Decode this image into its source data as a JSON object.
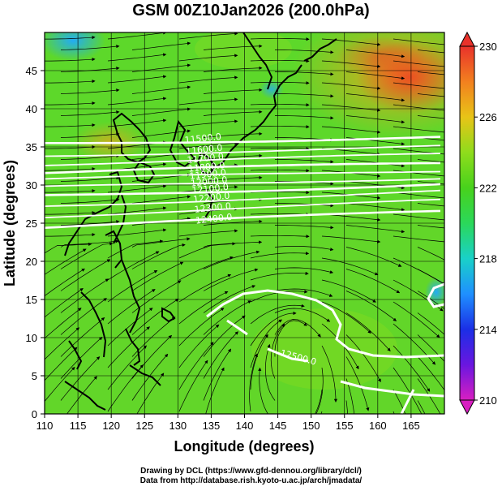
{
  "chart_data": {
    "type": "heatmap",
    "title": "GSM 00Z10Jan2026 (200.0hPa)",
    "xlabel": "Longitude (degrees)",
    "ylabel": "Latitude  (degrees)",
    "xlim": [
      110,
      170
    ],
    "ylim": [
      0,
      50
    ],
    "x_ticks": [
      110,
      115,
      120,
      125,
      130,
      135,
      140,
      145,
      150,
      155,
      160,
      165
    ],
    "y_ticks": [
      0,
      5,
      10,
      15,
      20,
      25,
      30,
      35,
      40,
      45
    ],
    "colorbar": {
      "min": 210,
      "max": 230,
      "ticks": [
        210,
        214,
        218,
        222,
        226,
        230
      ]
    },
    "grid": true,
    "overlays": [
      "streamlines",
      "geopotential height contours",
      "coastlines"
    ],
    "contours": [
      {
        "label": "11500.0",
        "lat": 35.5
      },
      {
        "label": "11600.0",
        "lat": 34.0
      },
      {
        "label": "11700.0",
        "lat": 32.8
      },
      {
        "label": "11800.0",
        "lat": 31.6
      },
      {
        "label": "11900.0",
        "lat": 30.6
      },
      {
        "label": "12000.0",
        "lat": 29.6
      },
      {
        "label": "12100.0",
        "lat": 28.6
      },
      {
        "label": "12200.0",
        "lat": 27.4
      },
      {
        "label": "12300.0",
        "lat": 26.0
      },
      {
        "label": "12400.0",
        "lat": 24.5
      }
    ],
    "extra_contour_labels": [
      "12500.0"
    ]
  },
  "credits": {
    "line1": "Drawing by DCL (https://www.gfd-dennou.org/library/dcl/)",
    "line2": "Data from http://database.rish.kyoto-u.ac.jp/arch/jmadata/"
  }
}
